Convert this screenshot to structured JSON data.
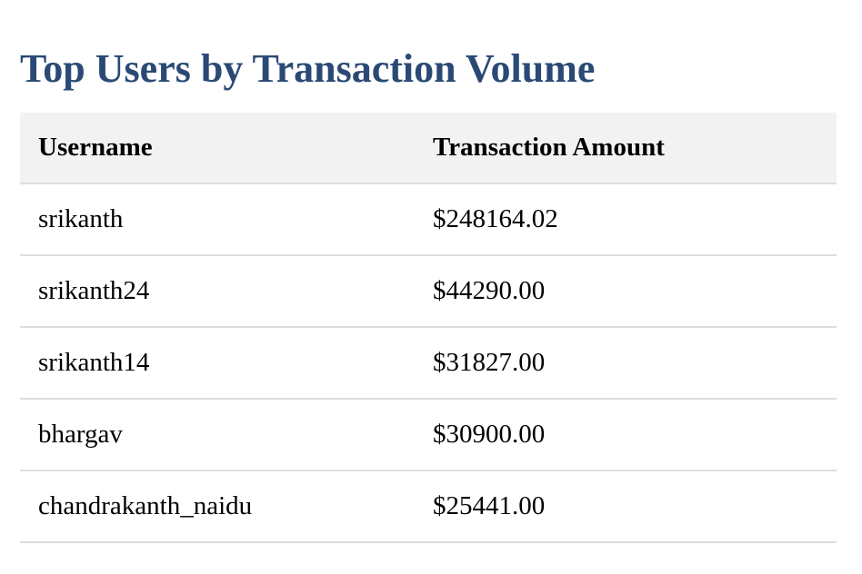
{
  "page": {
    "title": "Top Users by Transaction Volume",
    "accent_color": "#2a4a75",
    "header_background": "#f2f2f2",
    "divider_color": "#dddddd"
  },
  "table": {
    "columns": [
      "Username",
      "Transaction Amount"
    ],
    "rows": [
      {
        "username": "srikanth",
        "amount": "$248164.02"
      },
      {
        "username": "srikanth24",
        "amount": "$44290.00"
      },
      {
        "username": "srikanth14",
        "amount": "$31827.00"
      },
      {
        "username": "bhargav",
        "amount": "$30900.00"
      },
      {
        "username": "chandrakanth_naidu",
        "amount": "$25441.00"
      }
    ]
  }
}
